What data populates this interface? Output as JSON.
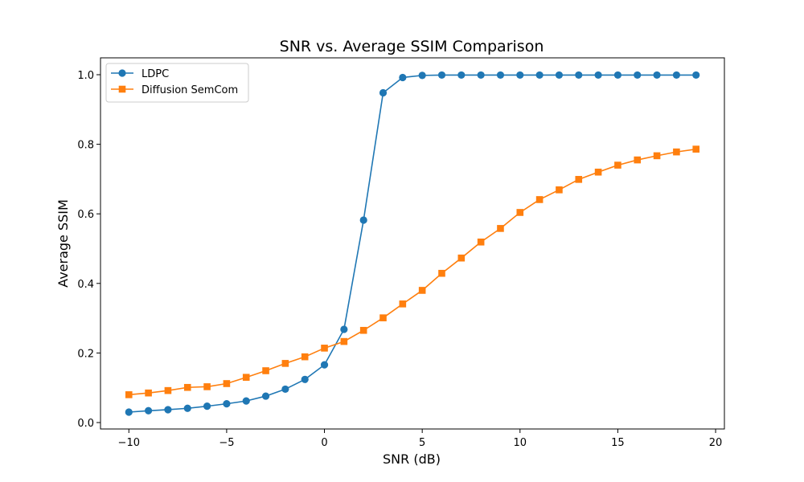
{
  "chart_data": {
    "type": "line",
    "title": "SNR vs. Average SSIM Comparison",
    "xlabel": "SNR (dB)",
    "ylabel": "Average SSIM",
    "xlim": [
      -11.45,
      20.45
    ],
    "ylim": [
      -0.0185,
      1.0485
    ],
    "xticks": [
      -10,
      -5,
      0,
      5,
      10,
      15,
      20
    ],
    "xtick_labels": [
      "−10",
      "−5",
      "0",
      "5",
      "10",
      "15",
      "20"
    ],
    "yticks": [
      0.0,
      0.2,
      0.4,
      0.6,
      0.8,
      1.0
    ],
    "ytick_labels": [
      "0.0",
      "0.2",
      "0.4",
      "0.6",
      "0.8",
      "1.0"
    ],
    "grid": false,
    "legend_position": "top-left",
    "x": [
      -10,
      -9,
      -8,
      -7,
      -6,
      -5,
      -4,
      -3,
      -2,
      -1,
      0,
      1,
      2,
      3,
      4,
      5,
      6,
      7,
      8,
      9,
      10,
      11,
      12,
      13,
      14,
      15,
      16,
      17,
      18,
      19
    ],
    "series": [
      {
        "name": "LDPC",
        "color": "#1f77b4",
        "marker": "circle",
        "values": [
          0.03,
          0.034,
          0.037,
          0.041,
          0.047,
          0.054,
          0.062,
          0.076,
          0.096,
          0.124,
          0.166,
          0.268,
          0.582,
          0.948,
          0.992,
          0.998,
          0.999,
          0.999,
          0.999,
          0.999,
          0.999,
          0.999,
          0.999,
          0.999,
          0.999,
          0.999,
          0.999,
          0.999,
          0.999,
          0.999
        ]
      },
      {
        "name": "Diffusion SemCom",
        "color": "#ff7f0e",
        "marker": "square",
        "values": [
          0.08,
          0.085,
          0.092,
          0.101,
          0.103,
          0.112,
          0.13,
          0.149,
          0.17,
          0.189,
          0.214,
          0.233,
          0.265,
          0.301,
          0.341,
          0.38,
          0.429,
          0.473,
          0.519,
          0.558,
          0.604,
          0.641,
          0.669,
          0.699,
          0.72,
          0.74,
          0.755,
          0.767,
          0.778,
          0.786
        ]
      }
    ]
  }
}
